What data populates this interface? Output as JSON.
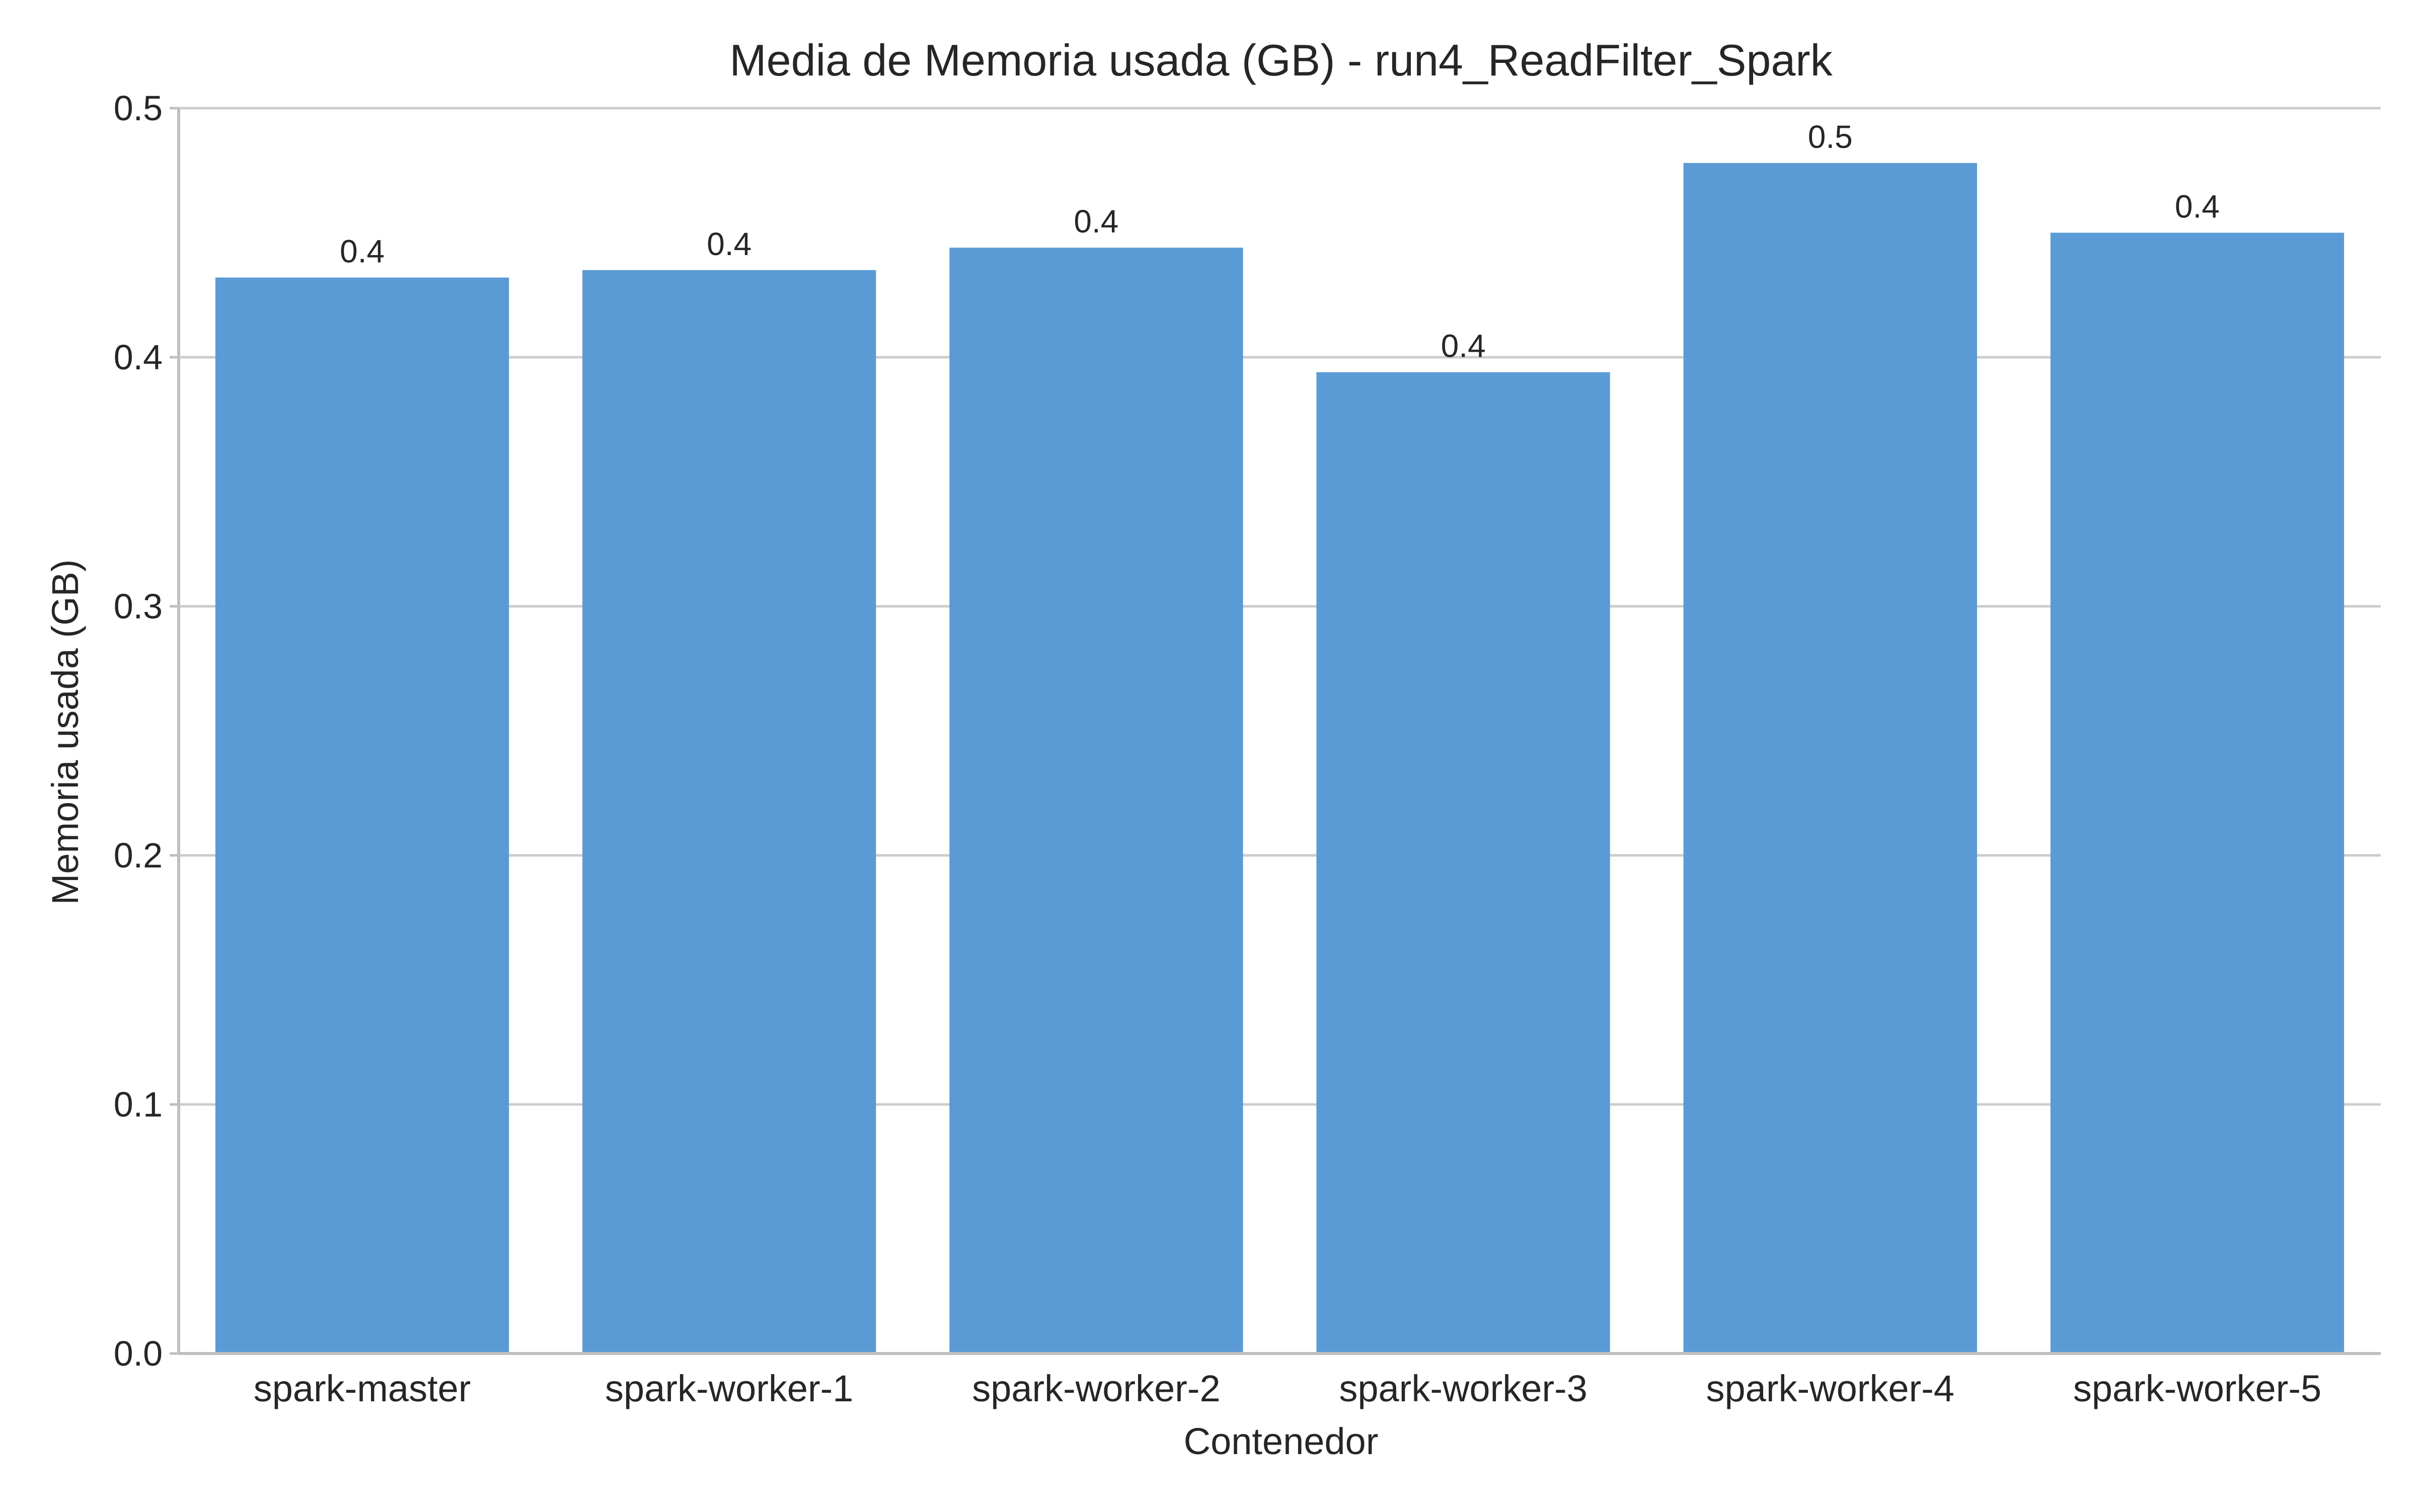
{
  "chart_data": {
    "type": "bar",
    "title": "Media de Memoria usada (GB) - run4_ReadFilter_Spark",
    "xlabel": "Contenedor",
    "ylabel": "Memoria usada (GB)",
    "categories": [
      "spark-master",
      "spark-worker-1",
      "spark-worker-2",
      "spark-worker-3",
      "spark-worker-4",
      "spark-worker-5"
    ],
    "values": [
      0.432,
      0.435,
      0.444,
      0.394,
      0.478,
      0.45
    ],
    "value_labels": [
      "0.4",
      "0.4",
      "0.4",
      "0.4",
      "0.5",
      "0.4"
    ],
    "ylim": [
      0,
      0.5
    ],
    "yticks": [
      0.0,
      0.1,
      0.2,
      0.3,
      0.4,
      0.5
    ],
    "ytick_labels": [
      "0.0",
      "0.1",
      "0.2",
      "0.3",
      "0.4",
      "0.5"
    ],
    "grid": "horizontal",
    "legend": "none",
    "colors": {
      "bar": "#5b9bd5",
      "grid": "#cccccc",
      "axis": "#bfbfbf",
      "text": "#262626"
    }
  }
}
